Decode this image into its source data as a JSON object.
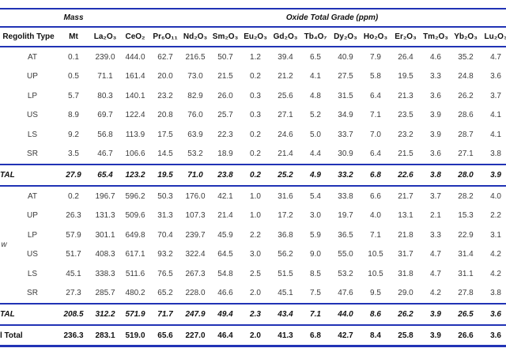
{
  "table": {
    "rule_color": "#2133b5",
    "group_header": {
      "mass_label": "Mass",
      "oxide_label": "Oxide Total Grade (ppm)"
    },
    "column_headers": [
      "Regolith Type",
      "Mt",
      "La₂O₃",
      "CeO₂",
      "Pr₆O₁₁",
      "Nd₂O₃",
      "Sm₂O₃",
      "Eu₂O₃",
      "Gd₂O₃",
      "Tb₄O₇",
      "Dy₂O₃",
      "Ho₂O₃",
      "Er₂O₃",
      "Tm₂O₃",
      "Yb₂O₃",
      "Lu₂O₃"
    ],
    "sections": [
      {
        "group_label_fragment": "",
        "rows": [
          {
            "regolith_type": "AT",
            "values": [
              "0.1",
              "239.0",
              "444.0",
              "62.7",
              "216.5",
              "50.7",
              "1.2",
              "39.4",
              "6.5",
              "40.9",
              "7.9",
              "26.4",
              "4.6",
              "35.2",
              "4.7"
            ]
          },
          {
            "regolith_type": "UP",
            "values": [
              "0.5",
              "71.1",
              "161.4",
              "20.0",
              "73.0",
              "21.5",
              "0.2",
              "21.2",
              "4.1",
              "27.5",
              "5.8",
              "19.5",
              "3.3",
              "24.8",
              "3.6"
            ]
          },
          {
            "regolith_type": "LP",
            "values": [
              "5.7",
              "80.3",
              "140.1",
              "23.2",
              "82.9",
              "26.0",
              "0.3",
              "25.6",
              "4.8",
              "31.5",
              "6.4",
              "21.3",
              "3.6",
              "26.2",
              "3.7"
            ]
          },
          {
            "regolith_type": "US",
            "values": [
              "8.9",
              "69.7",
              "122.4",
              "20.8",
              "76.0",
              "25.7",
              "0.3",
              "27.1",
              "5.2",
              "34.9",
              "7.1",
              "23.5",
              "3.9",
              "28.6",
              "4.1"
            ]
          },
          {
            "regolith_type": "LS",
            "values": [
              "9.2",
              "56.8",
              "113.9",
              "17.5",
              "63.9",
              "22.3",
              "0.2",
              "24.6",
              "5.0",
              "33.7",
              "7.0",
              "23.2",
              "3.9",
              "28.7",
              "4.1"
            ]
          },
          {
            "regolith_type": "SR",
            "values": [
              "3.5",
              "46.7",
              "106.6",
              "14.5",
              "53.2",
              "18.9",
              "0.2",
              "21.4",
              "4.4",
              "30.9",
              "6.4",
              "21.5",
              "3.6",
              "27.1",
              "3.8"
            ]
          }
        ],
        "total": {
          "label_fragment": "TAL",
          "values": [
            "27.9",
            "65.4",
            "123.2",
            "19.5",
            "71.0",
            "23.8",
            "0.2",
            "25.2",
            "4.9",
            "33.2",
            "6.8",
            "22.6",
            "3.8",
            "28.0",
            "3.9"
          ]
        }
      },
      {
        "group_label_fragment": "w",
        "rows": [
          {
            "regolith_type": "AT",
            "values": [
              "0.2",
              "196.7",
              "596.2",
              "50.3",
              "176.0",
              "42.1",
              "1.0",
              "31.6",
              "5.4",
              "33.8",
              "6.6",
              "21.7",
              "3.7",
              "28.2",
              "4.0"
            ]
          },
          {
            "regolith_type": "UP",
            "values": [
              "26.3",
              "131.3",
              "509.6",
              "31.3",
              "107.3",
              "21.4",
              "1.0",
              "17.2",
              "3.0",
              "19.7",
              "4.0",
              "13.1",
              "2.1",
              "15.3",
              "2.2"
            ]
          },
          {
            "regolith_type": "LP",
            "values": [
              "57.9",
              "301.1",
              "649.8",
              "70.4",
              "239.7",
              "45.9",
              "2.2",
              "36.8",
              "5.9",
              "36.5",
              "7.1",
              "21.8",
              "3.3",
              "22.9",
              "3.1"
            ]
          },
          {
            "regolith_type": "US",
            "values": [
              "51.7",
              "408.3",
              "617.1",
              "93.2",
              "322.4",
              "64.5",
              "3.0",
              "56.2",
              "9.0",
              "55.0",
              "10.5",
              "31.7",
              "4.7",
              "31.4",
              "4.2"
            ]
          },
          {
            "regolith_type": "LS",
            "values": [
              "45.1",
              "338.3",
              "511.6",
              "76.5",
              "267.3",
              "54.8",
              "2.5",
              "51.5",
              "8.5",
              "53.2",
              "10.5",
              "31.8",
              "4.7",
              "31.1",
              "4.2"
            ]
          },
          {
            "regolith_type": "SR",
            "values": [
              "27.3",
              "285.7",
              "480.2",
              "65.2",
              "228.0",
              "46.6",
              "2.0",
              "45.1",
              "7.5",
              "47.6",
              "9.5",
              "29.0",
              "4.2",
              "27.8",
              "3.8"
            ]
          }
        ],
        "total": {
          "label_fragment": "TAL",
          "values": [
            "208.5",
            "312.2",
            "571.9",
            "71.7",
            "247.9",
            "49.4",
            "2.3",
            "43.4",
            "7.1",
            "44.0",
            "8.6",
            "26.2",
            "3.9",
            "26.5",
            "3.6"
          ]
        }
      }
    ],
    "grand_total": {
      "label_fragment": "l Total",
      "values": [
        "236.3",
        "283.1",
        "519.0",
        "65.6",
        "227.0",
        "46.4",
        "2.0",
        "41.3",
        "6.8",
        "42.7",
        "8.4",
        "25.8",
        "3.9",
        "26.6",
        "3.6"
      ]
    }
  }
}
